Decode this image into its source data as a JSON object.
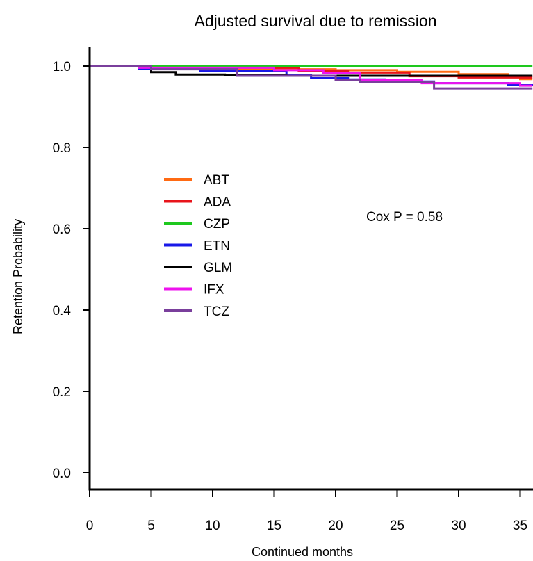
{
  "chart_data": {
    "type": "line",
    "title": "Adjusted survival due to remission",
    "xlabel": "Continued months",
    "ylabel": "Retention Probability",
    "xlim": [
      0,
      36
    ],
    "ylim": [
      0,
      1.0
    ],
    "x_ticks": [
      "0",
      "5",
      "10",
      "15",
      "20",
      "25",
      "30",
      "35"
    ],
    "y_ticks": [
      "0.0",
      "0.2",
      "0.4",
      "0.6",
      "0.8",
      "1.0"
    ],
    "annotation": "Cox P = 0.58",
    "legend_position": "center-left",
    "series": [
      {
        "name": "ABT",
        "color": "#ff6a13",
        "steps": [
          [
            0,
            1.0
          ],
          [
            5,
            0.994
          ],
          [
            15,
            0.994
          ],
          [
            17,
            0.992
          ],
          [
            20,
            0.99
          ],
          [
            25,
            0.986
          ],
          [
            30,
            0.98
          ],
          [
            34,
            0.975
          ],
          [
            35,
            0.968
          ],
          [
            36,
            0.968
          ]
        ]
      },
      {
        "name": "ADA",
        "color": "#e8141b",
        "steps": [
          [
            0,
            1.0
          ],
          [
            15,
            0.996
          ],
          [
            17,
            0.988
          ],
          [
            21,
            0.984
          ],
          [
            26,
            0.975
          ],
          [
            30,
            0.972
          ],
          [
            36,
            0.972
          ]
        ]
      },
      {
        "name": "CZP",
        "color": "#1ec81e",
        "steps": [
          [
            0,
            1.0
          ],
          [
            36,
            1.0
          ]
        ]
      },
      {
        "name": "ETN",
        "color": "#1818e8",
        "steps": [
          [
            0,
            1.0
          ],
          [
            4,
            0.994
          ],
          [
            9,
            0.988
          ],
          [
            16,
            0.978
          ],
          [
            18,
            0.97
          ],
          [
            21,
            0.967
          ],
          [
            24,
            0.962
          ],
          [
            28,
            0.958
          ],
          [
            34,
            0.953
          ],
          [
            36,
            0.952
          ]
        ]
      },
      {
        "name": "GLM",
        "color": "#000000",
        "steps": [
          [
            0,
            1.0
          ],
          [
            5,
            0.985
          ],
          [
            7,
            0.979
          ],
          [
            11,
            0.977
          ],
          [
            16,
            0.976
          ],
          [
            20,
            0.976
          ],
          [
            26,
            0.976
          ],
          [
            36,
            0.976
          ]
        ]
      },
      {
        "name": "IFX",
        "color": "#ee12ee",
        "steps": [
          [
            0,
            1.0
          ],
          [
            4,
            0.996
          ],
          [
            15,
            0.99
          ],
          [
            19,
            0.982
          ],
          [
            22,
            0.966
          ],
          [
            27,
            0.958
          ],
          [
            35,
            0.952
          ],
          [
            36,
            0.952
          ]
        ]
      },
      {
        "name": "TCZ",
        "color": "#7a3f9c",
        "steps": [
          [
            0,
            1.0
          ],
          [
            5,
            0.992
          ],
          [
            12,
            0.976
          ],
          [
            20,
            0.966
          ],
          [
            22,
            0.961
          ],
          [
            28,
            0.945
          ],
          [
            34,
            0.945
          ],
          [
            36,
            0.945
          ]
        ]
      }
    ]
  }
}
